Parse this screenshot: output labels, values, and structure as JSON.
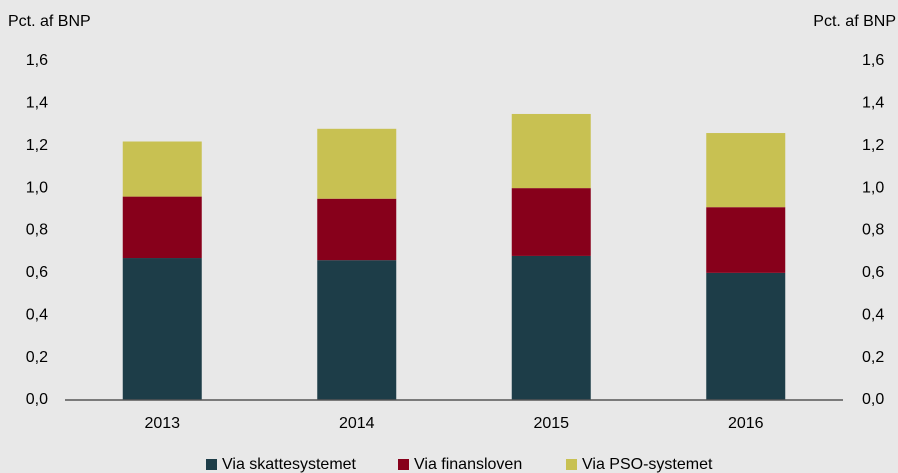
{
  "chart_data": {
    "type": "stacked_bar",
    "ylabel": "Pct. af BNP",
    "y2label": "Pct. af BNP",
    "categories": [
      "2013",
      "2014",
      "2015",
      "2016"
    ],
    "series": [
      {
        "name": "Via skattesystemet",
        "color": "#1d3d48",
        "values": [
          0.67,
          0.66,
          0.68,
          0.6
        ]
      },
      {
        "name": "Via finansloven",
        "color": "#87001b",
        "values": [
          0.29,
          0.29,
          0.32,
          0.31
        ]
      },
      {
        "name": "Via PSO-systemet",
        "color": "#c8c152",
        "values": [
          0.26,
          0.33,
          0.35,
          0.35
        ]
      }
    ],
    "ylim": [
      0,
      1.6
    ],
    "yticks": [
      {
        "value": 0,
        "label": "0,0"
      },
      {
        "value": 0.2,
        "label": "0,2"
      },
      {
        "value": 0.4,
        "label": "0,4"
      },
      {
        "value": 0.6,
        "label": "0,6"
      },
      {
        "value": 0.8,
        "label": "0,8"
      },
      {
        "value": 1.0,
        "label": "1,0"
      },
      {
        "value": 1.2,
        "label": "1,2"
      },
      {
        "value": 1.4,
        "label": "1,4"
      },
      {
        "value": 1.6,
        "label": "1,6"
      }
    ],
    "y2lim": [
      0,
      1.6
    ],
    "y2ticks": [
      {
        "value": 0,
        "label": "0,0"
      },
      {
        "value": 0.2,
        "label": "0,2"
      },
      {
        "value": 0.4,
        "label": "0,4"
      },
      {
        "value": 0.6,
        "label": "0,6"
      },
      {
        "value": 0.8,
        "label": "0,8"
      },
      {
        "value": 1.0,
        "label": "1,0"
      },
      {
        "value": 1.2,
        "label": "1,2"
      },
      {
        "value": 1.4,
        "label": "1,4"
      },
      {
        "value": 1.6,
        "label": "1,6"
      }
    ],
    "grid": false,
    "legend": "bottom"
  }
}
